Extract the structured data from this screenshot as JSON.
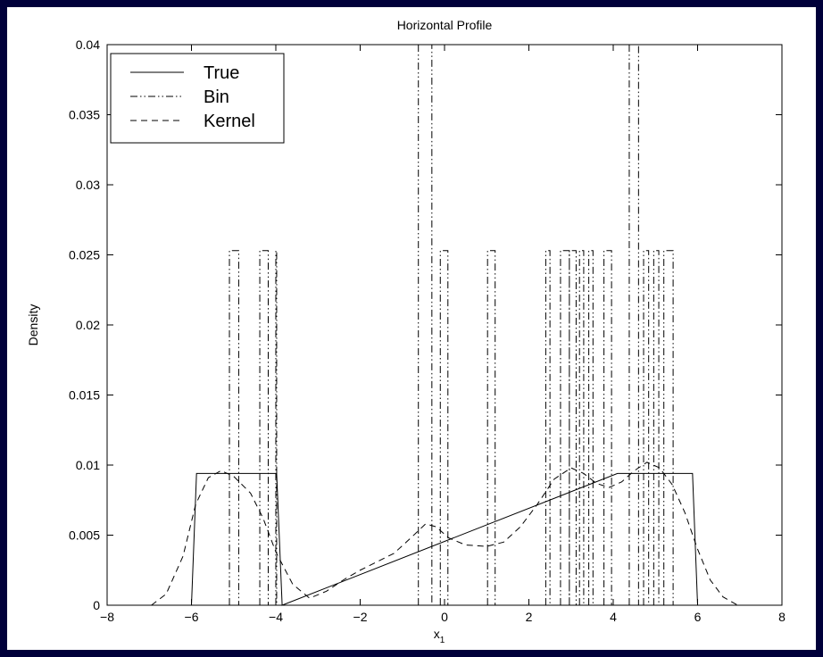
{
  "chart_data": {
    "type": "line",
    "title": "Horizontal Profile",
    "xlabel": "x",
    "xlabel_subscript": "1",
    "ylabel": "Density",
    "xlim": [
      -8,
      8
    ],
    "ylim": [
      0,
      0.04
    ],
    "x_ticks": [
      -8,
      -6,
      -4,
      -2,
      0,
      2,
      4,
      6,
      8
    ],
    "x_tick_labels": [
      "−8",
      "−6",
      "−4",
      "−2",
      "0",
      "2",
      "4",
      "6",
      "8"
    ],
    "y_ticks": [
      0,
      0.005,
      0.01,
      0.015,
      0.02,
      0.025,
      0.03,
      0.035,
      0.04
    ],
    "y_tick_labels": [
      "0",
      "0.005",
      "0.01",
      "0.015",
      "0.02",
      "0.025",
      "0.03",
      "0.035",
      "0.04"
    ],
    "grid": false,
    "legend_position": "top-left",
    "series": [
      {
        "name": "True",
        "style": "solid",
        "points": [
          [
            -6.0,
            0
          ],
          [
            -5.88,
            0.0094
          ],
          [
            -3.98,
            0.0094
          ],
          [
            -3.85,
            0
          ],
          [
            4.1,
            0.0094
          ],
          [
            5.88,
            0.0094
          ],
          [
            6.0,
            0
          ]
        ]
      },
      {
        "name": "Bin",
        "style": "dashdot",
        "bins": [
          {
            "x0": -5.1,
            "x1": -4.88,
            "y": 0.0253
          },
          {
            "x0": -4.38,
            "x1": -4.18,
            "y": 0.0253
          },
          {
            "x0": -4.0,
            "x1": -3.98,
            "y": 0.0253
          },
          {
            "x0": -0.62,
            "x1": -0.3,
            "y": 0.04
          },
          {
            "x0": -0.1,
            "x1": 0.08,
            "y": 0.0253
          },
          {
            "x0": 1.02,
            "x1": 1.2,
            "y": 0.0253
          },
          {
            "x0": 2.4,
            "x1": 2.5,
            "y": 0.0253
          },
          {
            "x0": 2.75,
            "x1": 2.96,
            "y": 0.0253
          },
          {
            "x0": 2.96,
            "x1": 3.12,
            "y": 0.0253
          },
          {
            "x0": 3.2,
            "x1": 3.3,
            "y": 0.0253
          },
          {
            "x0": 3.42,
            "x1": 3.52,
            "y": 0.0253
          },
          {
            "x0": 3.78,
            "x1": 3.96,
            "y": 0.0253
          },
          {
            "x0": 4.38,
            "x1": 4.6,
            "y": 0.04
          },
          {
            "x0": 4.72,
            "x1": 4.84,
            "y": 0.0253
          },
          {
            "x0": 4.96,
            "x1": 5.08,
            "y": 0.0253
          },
          {
            "x0": 5.2,
            "x1": 5.42,
            "y": 0.0253
          }
        ]
      },
      {
        "name": "Kernel",
        "style": "dashed",
        "points": [
          [
            -6.95,
            0
          ],
          [
            -6.6,
            0.0008
          ],
          [
            -6.2,
            0.0035
          ],
          [
            -5.9,
            0.0072
          ],
          [
            -5.6,
            0.0091
          ],
          [
            -5.3,
            0.0096
          ],
          [
            -5.0,
            0.0092
          ],
          [
            -4.6,
            0.008
          ],
          [
            -4.3,
            0.0062
          ],
          [
            -4.0,
            0.0038
          ],
          [
            -3.6,
            0.0015
          ],
          [
            -3.2,
            0.0005
          ],
          [
            -2.8,
            0.001
          ],
          [
            -2.4,
            0.0018
          ],
          [
            -2.0,
            0.0025
          ],
          [
            -1.6,
            0.0031
          ],
          [
            -1.2,
            0.0037
          ],
          [
            -0.8,
            0.0048
          ],
          [
            -0.45,
            0.0058
          ],
          [
            -0.2,
            0.0056
          ],
          [
            0.1,
            0.0048
          ],
          [
            0.5,
            0.0043
          ],
          [
            1.0,
            0.0042
          ],
          [
            1.4,
            0.0045
          ],
          [
            1.8,
            0.0056
          ],
          [
            2.2,
            0.0072
          ],
          [
            2.6,
            0.009
          ],
          [
            3.0,
            0.0098
          ],
          [
            3.3,
            0.0094
          ],
          [
            3.6,
            0.0087
          ],
          [
            3.9,
            0.0084
          ],
          [
            4.2,
            0.0088
          ],
          [
            4.5,
            0.0096
          ],
          [
            4.8,
            0.0102
          ],
          [
            5.1,
            0.0098
          ],
          [
            5.4,
            0.0086
          ],
          [
            5.7,
            0.0066
          ],
          [
            6.0,
            0.004
          ],
          [
            6.3,
            0.0018
          ],
          [
            6.6,
            0.0006
          ],
          [
            6.95,
            0
          ]
        ]
      }
    ]
  }
}
